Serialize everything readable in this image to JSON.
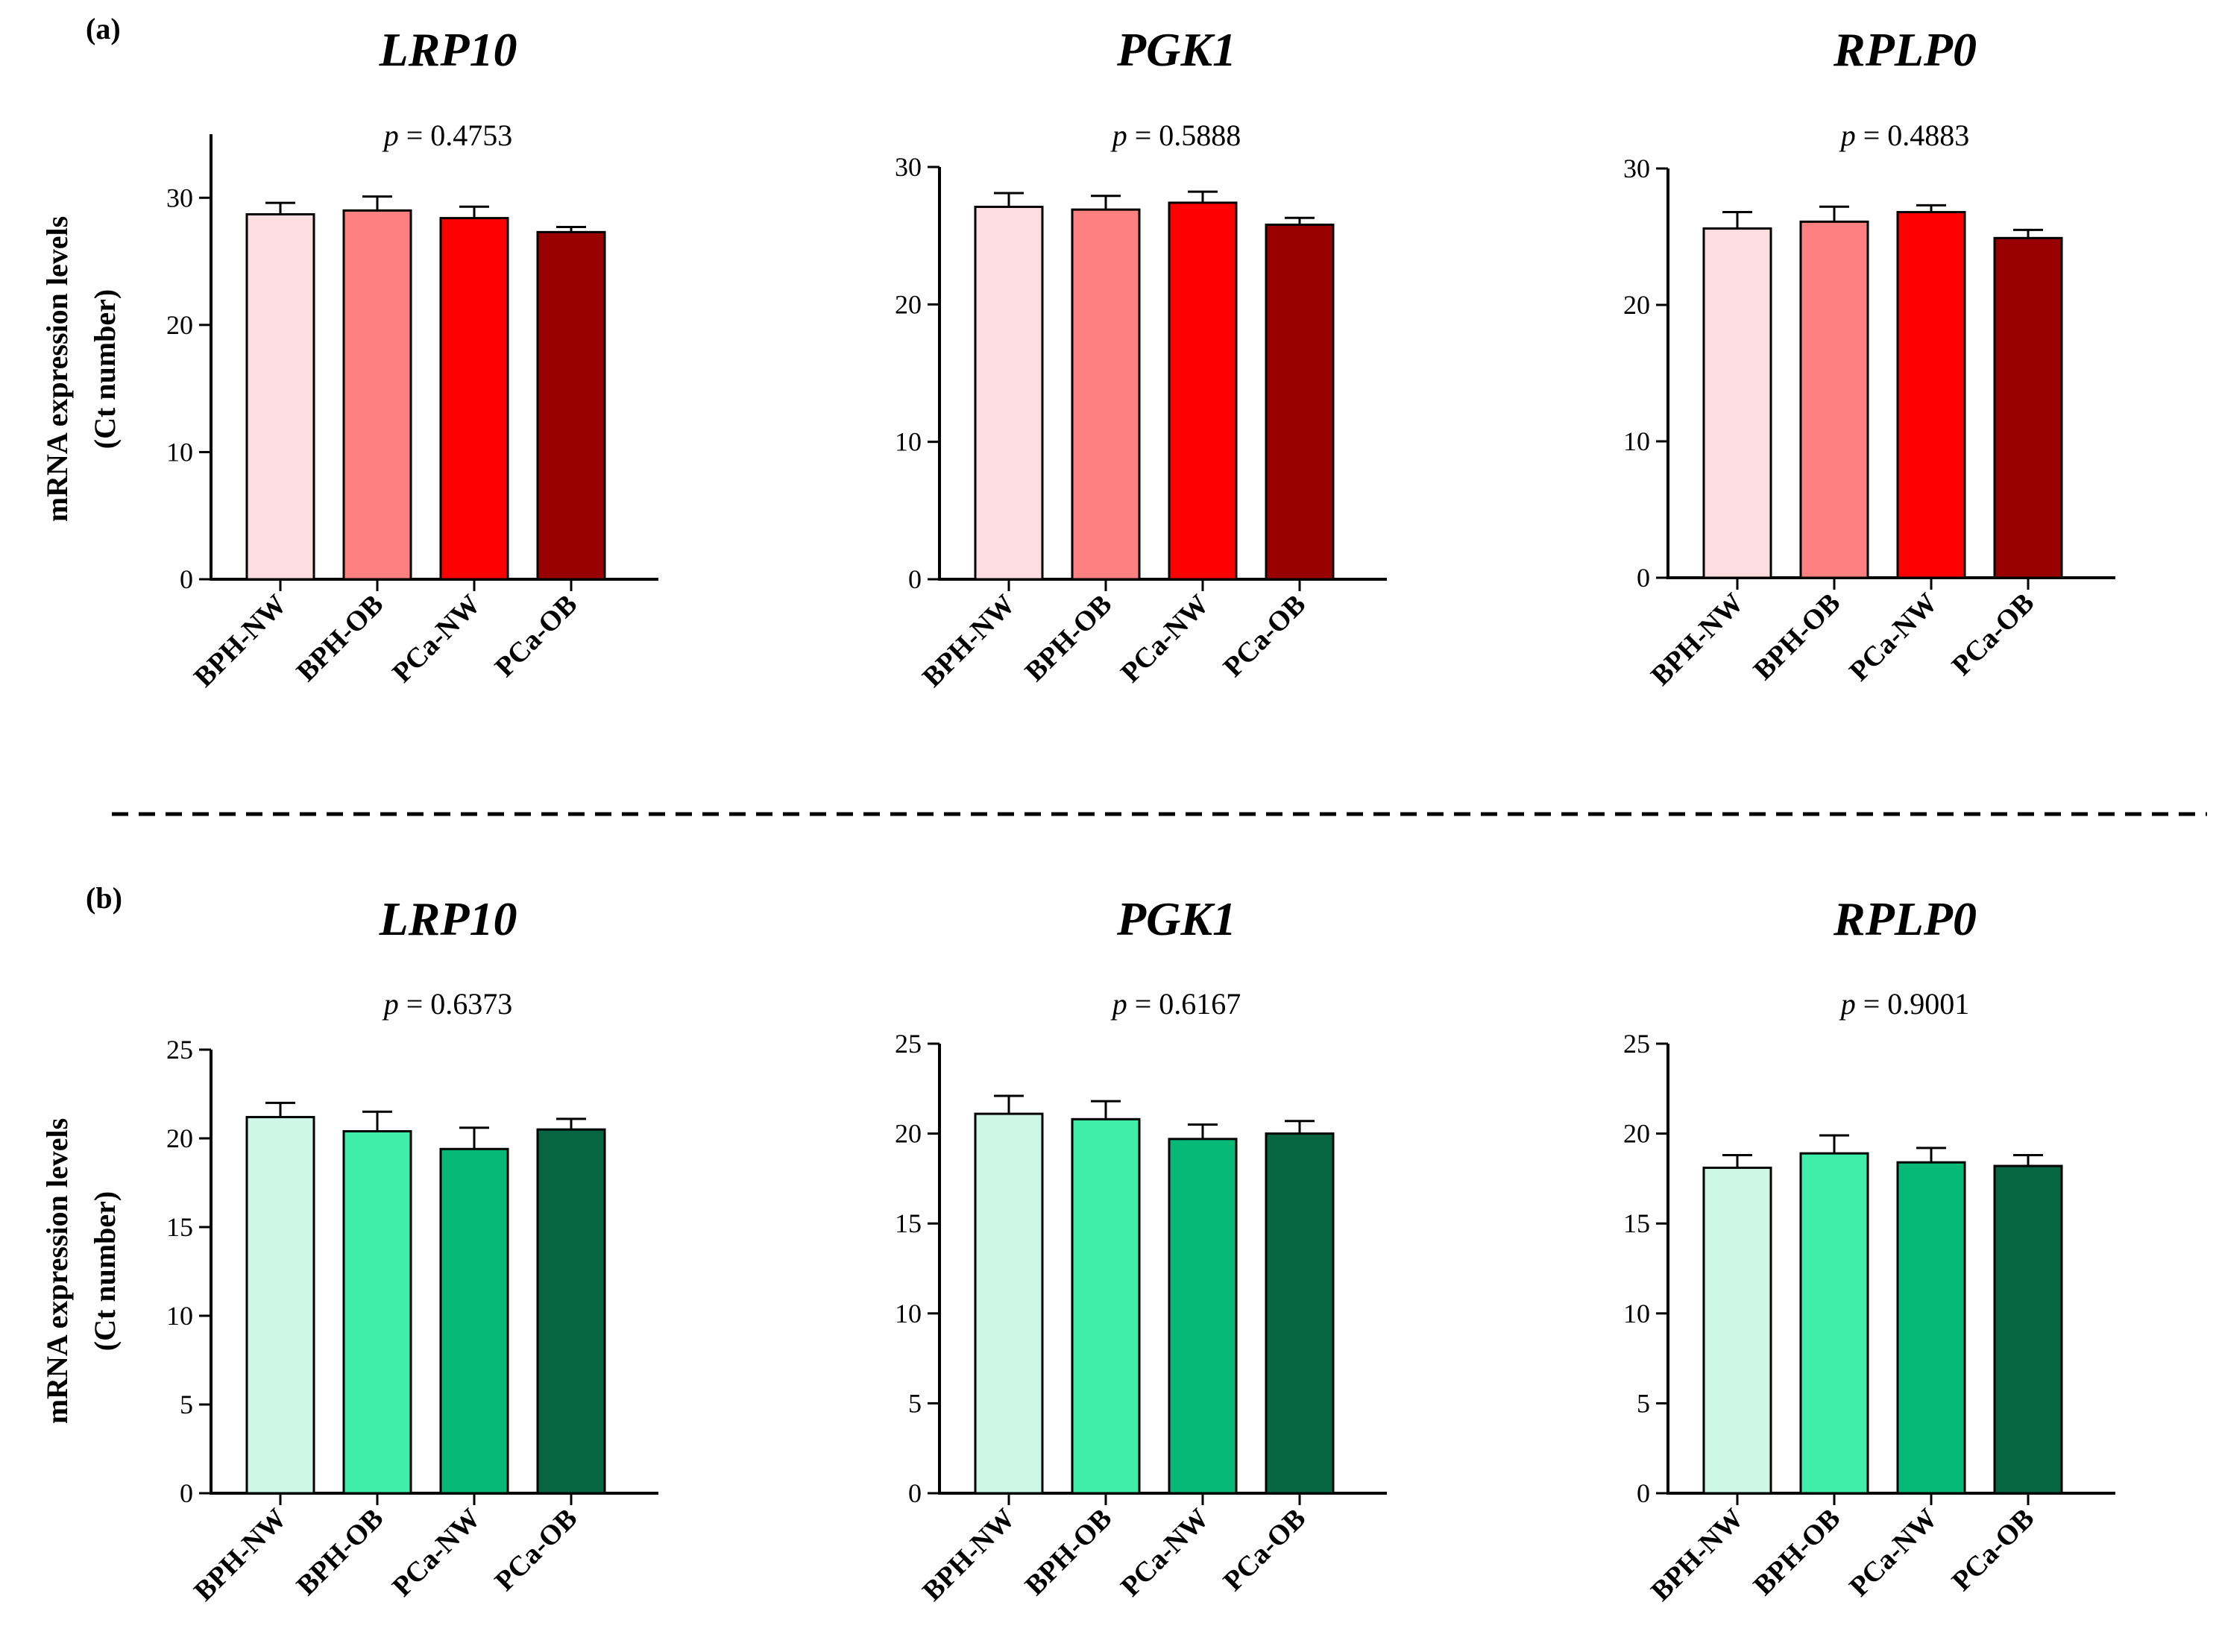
{
  "figure": {
    "panel_labels": [
      "(a)",
      "(b)"
    ],
    "ylabel_line1": "mRNA expression levels",
    "ylabel_line2": "(Ct number)",
    "p_symbol": "p",
    "p_eq": "="
  },
  "colors": {
    "red": [
      "#fddde0",
      "#ff8080",
      "#ff0000",
      "#990000"
    ],
    "green": [
      "#cdf7e6",
      "#40eeaa",
      "#07b977",
      "#066644"
    ]
  },
  "chart_data": [
    {
      "type": "bar",
      "panel": "(a)",
      "title": "LRP10",
      "p_value": "0.4753",
      "categories": [
        "BPH-NW",
        "BPH-OB",
        "PCa-NW",
        "PCa-OB"
      ],
      "values": [
        28.7,
        29.0,
        28.4,
        27.3
      ],
      "errors": [
        0.9,
        1.1,
        0.9,
        0.4
      ],
      "yticks": [
        0,
        10,
        20,
        30
      ],
      "ylim": [
        0,
        35
      ],
      "color_set": "red",
      "ylabel": "mRNA expression levels (Ct number)"
    },
    {
      "type": "bar",
      "panel": "(a)",
      "title": "PGK1",
      "p_value": "0.5888",
      "categories": [
        "BPH-NW",
        "BPH-OB",
        "PCa-NW",
        "PCa-OB"
      ],
      "values": [
        27.1,
        26.9,
        27.4,
        25.8
      ],
      "errors": [
        1.0,
        1.0,
        0.8,
        0.5
      ],
      "yticks": [
        0,
        10,
        20,
        30
      ],
      "ylim": [
        0,
        30
      ],
      "color_set": "red",
      "ylabel": ""
    },
    {
      "type": "bar",
      "panel": "(a)",
      "title": "RPLP0",
      "p_value": "0.4883",
      "categories": [
        "BPH-NW",
        "BPH-OB",
        "PCa-NW",
        "PCa-OB"
      ],
      "values": [
        25.6,
        26.1,
        26.8,
        24.9
      ],
      "errors": [
        1.2,
        1.1,
        0.5,
        0.6
      ],
      "yticks": [
        0,
        10,
        20,
        30
      ],
      "ylim": [
        0,
        30
      ],
      "color_set": "red",
      "ylabel": ""
    },
    {
      "type": "bar",
      "panel": "(b)",
      "title": "LRP10",
      "p_value": "0.6373",
      "categories": [
        "BPH-NW",
        "BPH-OB",
        "PCa-NW",
        "PCa-OB"
      ],
      "values": [
        21.2,
        20.4,
        19.4,
        20.5
      ],
      "errors": [
        0.8,
        1.1,
        1.2,
        0.6
      ],
      "yticks": [
        0,
        5,
        10,
        15,
        20,
        25
      ],
      "ylim": [
        0,
        25
      ],
      "color_set": "green",
      "ylabel": "mRNA expression levels (Ct number)"
    },
    {
      "type": "bar",
      "panel": "(b)",
      "title": "PGK1",
      "p_value": "0.6167",
      "categories": [
        "BPH-NW",
        "BPH-OB",
        "PCa-NW",
        "PCa-OB"
      ],
      "values": [
        21.1,
        20.8,
        19.7,
        20.0
      ],
      "errors": [
        1.0,
        1.0,
        0.8,
        0.7
      ],
      "yticks": [
        0,
        5,
        10,
        15,
        20,
        25
      ],
      "ylim": [
        0,
        25
      ],
      "color_set": "green",
      "ylabel": ""
    },
    {
      "type": "bar",
      "panel": "(b)",
      "title": "RPLP0",
      "p_value": "0.9001",
      "categories": [
        "BPH-NW",
        "BPH-OB",
        "PCa-NW",
        "PCa-OB"
      ],
      "values": [
        18.1,
        18.9,
        18.4,
        18.2
      ],
      "errors": [
        0.7,
        1.0,
        0.8,
        0.6
      ],
      "yticks": [
        0,
        5,
        10,
        15,
        20,
        25
      ],
      "ylim": [
        0,
        25
      ],
      "color_set": "green",
      "ylabel": ""
    }
  ]
}
